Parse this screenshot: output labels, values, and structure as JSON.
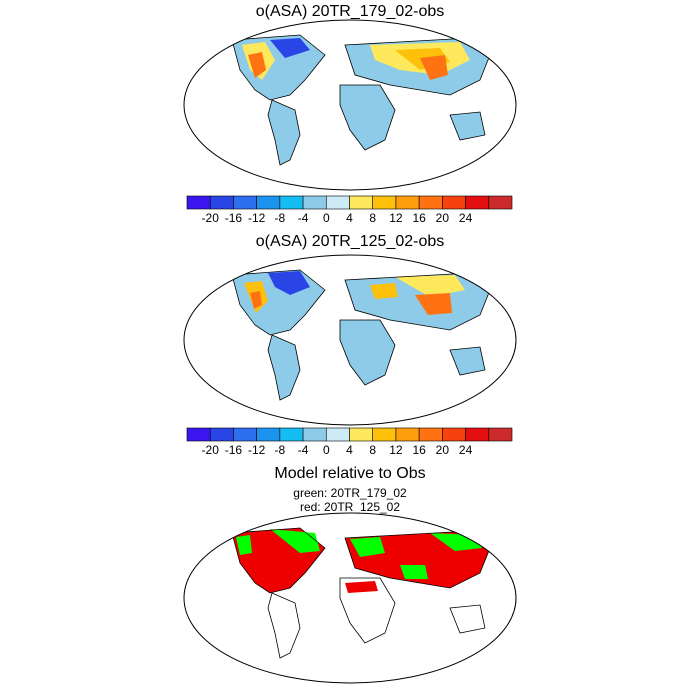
{
  "panels": [
    {
      "title": "o(ASA) 20TR_179_02-obs"
    },
    {
      "title": "o(ASA) 20TR_125_02-obs"
    }
  ],
  "colorbar": {
    "colors": [
      "#3c16f0",
      "#2a45e6",
      "#2e6ff0",
      "#1c93ef",
      "#16bdf2",
      "#8ecbe8",
      "#cdebf6",
      "#fde95b",
      "#fdc10c",
      "#fe9e0c",
      "#fe7214",
      "#f5420f",
      "#e40f0f",
      "#cc2b2b"
    ],
    "ticks": [
      "-20",
      "-16",
      "-12",
      "-8",
      "-4",
      "0",
      "4",
      "8",
      "12",
      "16",
      "20",
      "24"
    ]
  },
  "bottom": {
    "title": "Model relative to Obs",
    "green_label": "green: 20TR_179_02",
    "red_label": "red: 20TR_125_02",
    "green": "#00ff00",
    "red": "#ee0000"
  }
}
